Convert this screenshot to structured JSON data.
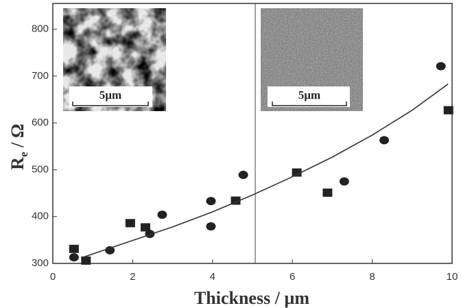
{
  "chart_data": {
    "type": "scatter",
    "xlabel": "Thickness / µm",
    "ylabel": [
      "R",
      "e",
      " / Ω"
    ],
    "xlim": [
      0,
      10
    ],
    "ylim": [
      300,
      855
    ],
    "xticks": [
      0,
      2,
      4,
      6,
      8,
      10
    ],
    "yticks": [
      300,
      400,
      500,
      600,
      700,
      800
    ],
    "vline": 5.07,
    "insets": [
      "5µm",
      "5µm"
    ],
    "series": [
      {
        "marker": "circle",
        "color": "#222",
        "x": [
          0.53,
          1.43,
          2.43,
          2.74,
          3.96,
          3.96,
          4.77,
          7.3,
          8.3,
          9.72
        ],
        "values": [
          313,
          328,
          363,
          404,
          433,
          379,
          489,
          475,
          563,
          721
        ]
      },
      {
        "marker": "square",
        "color": "#222",
        "x": [
          0.53,
          0.83,
          1.94,
          2.32,
          4.58,
          6.11,
          6.88,
          9.91
        ],
        "values": [
          331,
          306,
          386,
          377,
          434,
          494,
          451,
          627
        ]
      },
      {
        "marker": "line",
        "color": "#333",
        "x": [
          0.75,
          2,
          3,
          4,
          5,
          6,
          7,
          8,
          9,
          9.9
        ],
        "values": [
          313,
          349,
          378,
          410,
          446,
          485,
          527,
          574,
          627,
          683
        ]
      }
    ]
  }
}
